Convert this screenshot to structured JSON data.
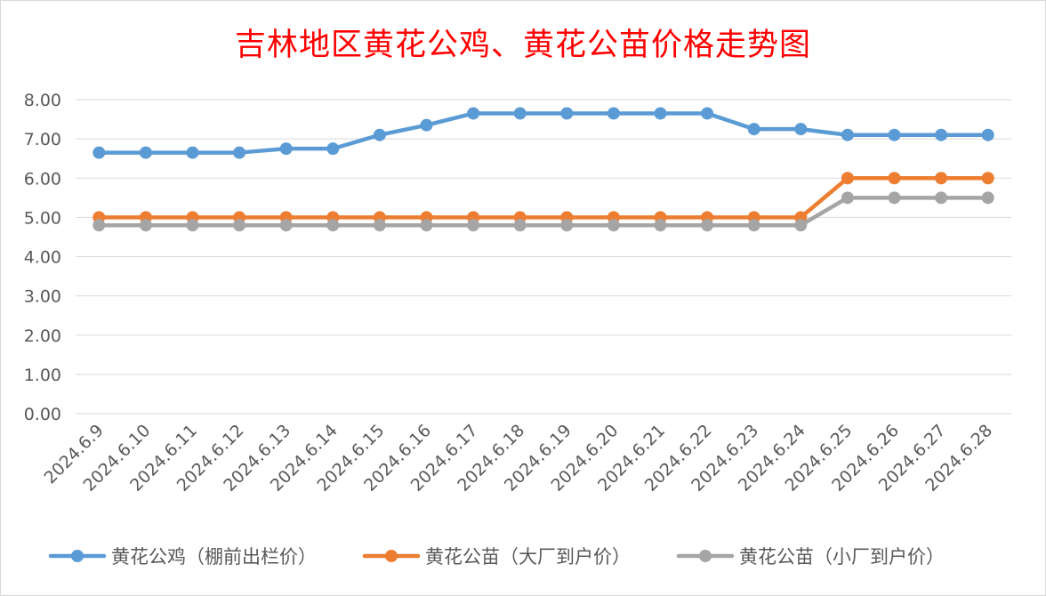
{
  "chart_data": {
    "type": "line",
    "title": "吉林地区黄花公鸡、黄花公苗价格走势图",
    "xlabel": "",
    "ylabel": "",
    "categories": [
      "2024.6.9",
      "2024.6.10",
      "2024.6.11",
      "2024.6.12",
      "2024.6.13",
      "2024.6.14",
      "2024.6.15",
      "2024.6.16",
      "2024.6.17",
      "2024.6.18",
      "2024.6.19",
      "2024.6.20",
      "2024.6.21",
      "2024.6.22",
      "2024.6.23",
      "2024.6.24",
      "2024.6.25",
      "2024.6.26",
      "2024.6.27",
      "2024.6.28"
    ],
    "ylim": [
      0,
      8
    ],
    "yticks": [
      "0.00",
      "1.00",
      "2.00",
      "3.00",
      "4.00",
      "5.00",
      "6.00",
      "7.00",
      "8.00"
    ],
    "grid": true,
    "legend_position": "bottom",
    "series": [
      {
        "name": "黄花公鸡（棚前出栏价）",
        "color": "#5b9bd5",
        "values": [
          6.65,
          6.65,
          6.65,
          6.65,
          6.75,
          6.75,
          7.1,
          7.35,
          7.65,
          7.65,
          7.65,
          7.65,
          7.65,
          7.65,
          7.25,
          7.25,
          7.1,
          7.1,
          7.1,
          7.1
        ]
      },
      {
        "name": "黄花公苗（大厂到户价）",
        "color": "#ed7d31",
        "values": [
          5.0,
          5.0,
          5.0,
          5.0,
          5.0,
          5.0,
          5.0,
          5.0,
          5.0,
          5.0,
          5.0,
          5.0,
          5.0,
          5.0,
          5.0,
          5.0,
          6.0,
          6.0,
          6.0,
          6.0
        ]
      },
      {
        "name": "黄花公苗（小厂到户价）",
        "color": "#a5a5a5",
        "values": [
          4.8,
          4.8,
          4.8,
          4.8,
          4.8,
          4.8,
          4.8,
          4.8,
          4.8,
          4.8,
          4.8,
          4.8,
          4.8,
          4.8,
          4.8,
          4.8,
          5.5,
          5.5,
          5.5,
          5.5
        ]
      }
    ]
  }
}
